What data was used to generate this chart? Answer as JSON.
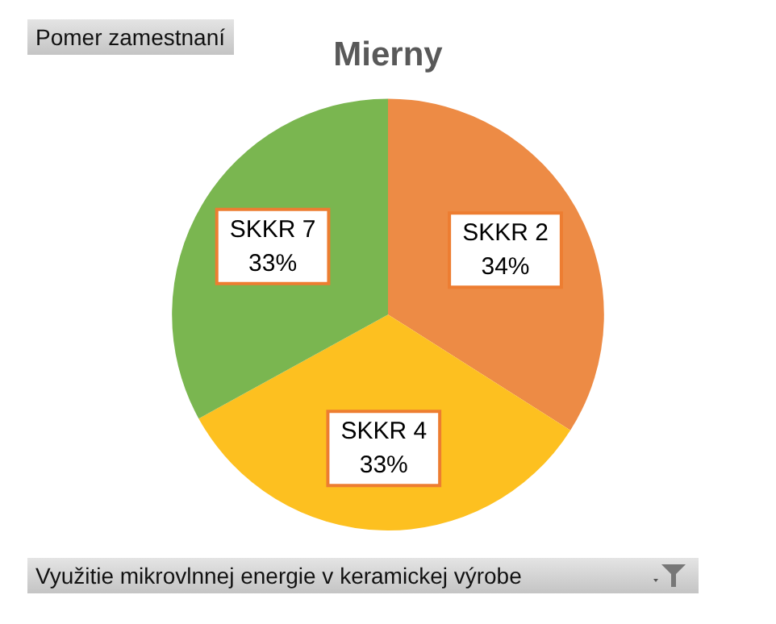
{
  "chart_data": {
    "type": "pie",
    "title": "Mierny",
    "categories": [
      "SKKR 2",
      "SKKR 4",
      "SKKR 7"
    ],
    "values": [
      34,
      33,
      33
    ],
    "colors": [
      "#ed8b45",
      "#fdc020",
      "#7ab650"
    ],
    "value_labels": [
      "34%",
      "33%",
      "33%"
    ],
    "legend": false,
    "annotations": [
      "Pomer zamestnaní",
      "Využitie mikrovlnnej energie v keramickej výrobe"
    ]
  }
}
